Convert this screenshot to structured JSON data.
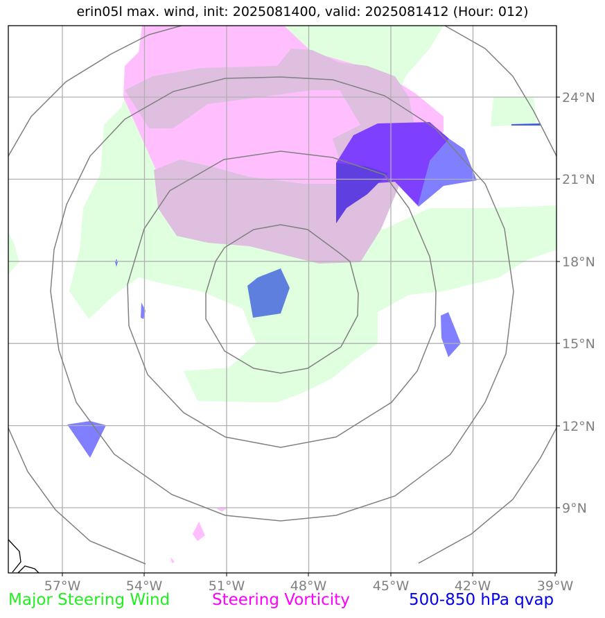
{
  "title": "erin05l max. wind, init: 2025081400, valid: 2025081412 (Hour: 012)",
  "map": {
    "lon_labels": [
      "57°W",
      "54°W",
      "51°W",
      "48°W",
      "45°W",
      "42°W",
      "39°W"
    ],
    "lat_labels": [
      "24°N",
      "21°N",
      "18°N",
      "15°N",
      "12°N",
      "9°N"
    ],
    "lon_range": [
      -59,
      -39
    ],
    "lat_range": [
      7,
      26
    ]
  },
  "legend": [
    {
      "label": "Major Steering Wind",
      "color": "#22ee22"
    },
    {
      "label": "Steering Vorticity",
      "color": "#ff00ff"
    },
    {
      "label": "500-850 hPa qvap",
      "color": "#0000ee"
    }
  ],
  "colors": {
    "wind_fill": "#dfffdf",
    "vorticity_fill": "#ffbfff",
    "overlap_fill": "#dfbfdf",
    "qvap_light": "#7f7fff",
    "qvap_dark": "#7f3fff",
    "qvap_mid": "#5f3fdf",
    "qvap_center": "#5f7fdf",
    "grid": "#b0b0b0",
    "range_ring": "#808080",
    "coast": "#000000",
    "tick_label": "#808080"
  }
}
